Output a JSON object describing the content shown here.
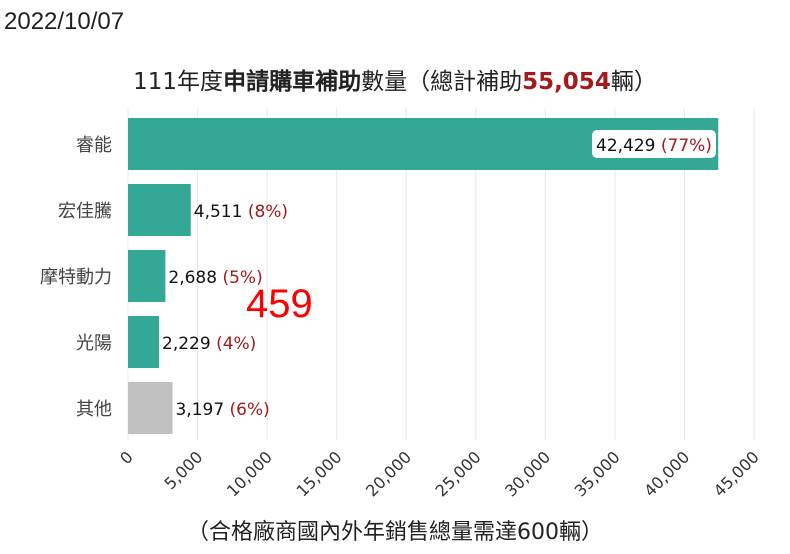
{
  "date_label": "2022/10/07",
  "title": {
    "prefix": "111年度",
    "bold": "申請購車補助",
    "mid": "數量（總計補助",
    "total": "55,054",
    "suffix": "輛）"
  },
  "footnote": "（合格廠商國內外年銷售總量需達600輛）",
  "overlay_number": "459",
  "colors": {
    "bar_main": "#33a896",
    "bar_other": "#c0c0c0",
    "percent_text": "#a31a1a",
    "total_text": "#a31a1a",
    "grid": "#e8e8e8"
  },
  "chart_data": {
    "type": "bar",
    "orientation": "horizontal",
    "categories": [
      "睿能",
      "宏佳騰",
      "摩特動力",
      "光陽",
      "其他"
    ],
    "values": [
      42429,
      4511,
      2688,
      2229,
      3197
    ],
    "value_labels": [
      "42,429",
      "4,511",
      "2,688",
      "2,229",
      "3,197"
    ],
    "percent_labels": [
      "(77%)",
      "(8%)",
      "(5%)",
      "(4%)",
      "(6%)"
    ],
    "bar_colors": [
      "#33a896",
      "#33a896",
      "#33a896",
      "#33a896",
      "#c0c0c0"
    ],
    "xlim": [
      0,
      45000
    ],
    "x_ticks": [
      0,
      5000,
      10000,
      15000,
      20000,
      25000,
      30000,
      35000,
      40000,
      45000
    ],
    "x_tick_labels": [
      "0",
      "5,000",
      "10,000",
      "15,000",
      "20,000",
      "25,000",
      "30,000",
      "35,000",
      "40,000",
      "45,000"
    ],
    "grid": "vertical"
  }
}
